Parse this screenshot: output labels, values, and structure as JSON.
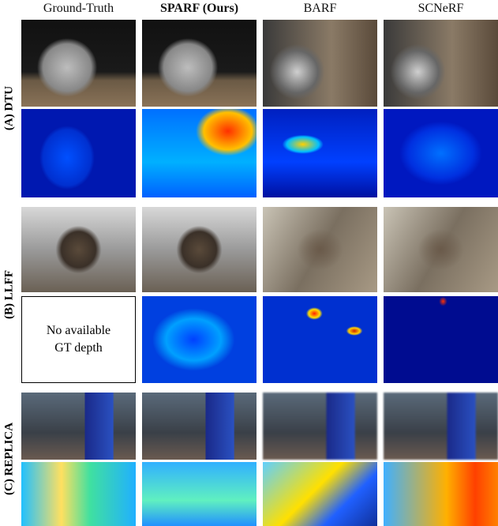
{
  "header": {
    "columns": [
      "Ground-Truth",
      "SPARF (Ours)",
      "BARF",
      "SCNeRF"
    ]
  },
  "groups": [
    {
      "label": "(A) DTU"
    },
    {
      "label": "(B) LLFF"
    },
    {
      "label": "(C) REPLICA"
    }
  ],
  "placeholder": {
    "lines": [
      "No available",
      "GT depth"
    ]
  }
}
